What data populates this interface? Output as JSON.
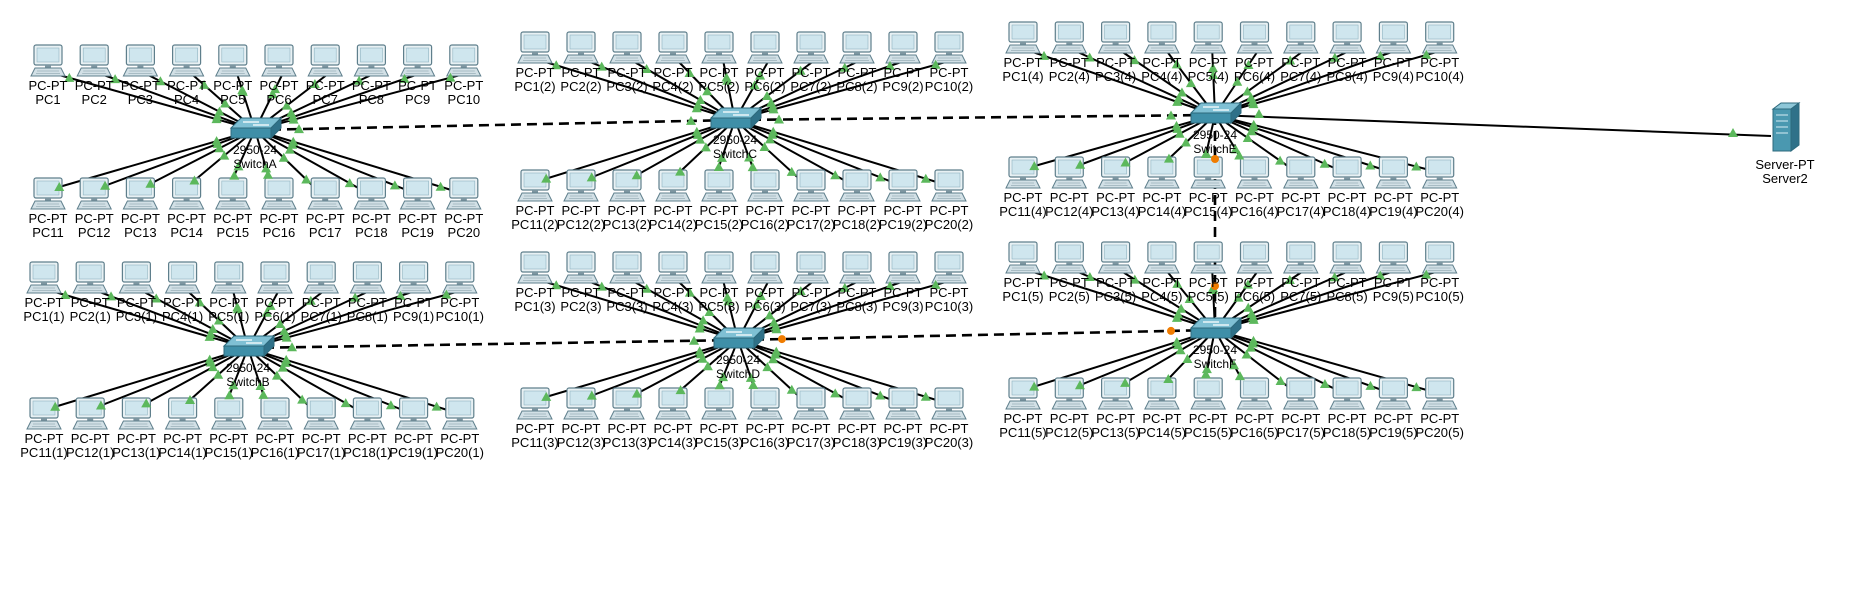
{
  "colors": {
    "background": "#ffffff",
    "cable_straight": "#000000",
    "cable_crossover": "#000000",
    "link_up": "#5cb85c",
    "link_down": "#f07c00",
    "switch_body": "#3f8fa8",
    "pc_screen": "#cfe6ee"
  },
  "pc_type": "PC-PT",
  "switch_model": "2950-24",
  "server_type": "Server-PT",
  "switches": [
    {
      "id": "A",
      "name": "SwitchA",
      "pcs_top": [
        "PC1",
        "PC2",
        "PC3",
        "PC4",
        "PC5",
        "PC6",
        "PC7",
        "PC8",
        "PC9",
        "PC10"
      ],
      "pcs_bottom": [
        "PC11",
        "PC12",
        "PC13",
        "PC14",
        "PC15",
        "PC16",
        "PC17",
        "PC18",
        "PC19",
        "PC20"
      ]
    },
    {
      "id": "B",
      "name": "SwitchB",
      "pcs_top": [
        "PC1(1)",
        "PC2(1)",
        "PC3(1)",
        "PC4(1)",
        "PC5(1)",
        "PC6(1)",
        "PC7(1)",
        "PC8(1)",
        "PC9(1)",
        "PC10(1)"
      ],
      "pcs_bottom": [
        "PC11(1)",
        "PC12(1)",
        "PC13(1)",
        "PC14(1)",
        "PC15(1)",
        "PC16(1)",
        "PC17(1)",
        "PC18(1)",
        "PC19(1)",
        "PC20(1)"
      ]
    },
    {
      "id": "C",
      "name": "SwitchC",
      "pcs_top": [
        "PC1(2)",
        "PC2(2)",
        "PC3(2)",
        "PC4(2)",
        "PC5(2)",
        "PC6(2)",
        "PC7(2)",
        "PC8(2)",
        "PC9(2)",
        "PC10(2)"
      ],
      "pcs_bottom": [
        "PC11(2)",
        "PC12(2)",
        "PC13(2)",
        "PC14(2)",
        "PC15(2)",
        "PC16(2)",
        "PC17(2)",
        "PC18(2)",
        "PC19(2)",
        "PC20(2)"
      ]
    },
    {
      "id": "D",
      "name": "SwitchD",
      "pcs_top": [
        "PC1(3)",
        "PC2(3)",
        "PC3(3)",
        "PC4(3)",
        "PC5(3)",
        "PC6(3)",
        "PC7(3)",
        "PC8(3)",
        "PC9(3)",
        "PC10(3)"
      ],
      "pcs_bottom": [
        "PC11(3)",
        "PC12(3)",
        "PC13(3)",
        "PC14(3)",
        "PC15(3)",
        "PC16(3)",
        "PC17(3)",
        "PC18(3)",
        "PC19(3)",
        "PC20(3)"
      ]
    },
    {
      "id": "E",
      "name": "SwitchE",
      "pcs_top": [
        "PC1(4)",
        "PC2(4)",
        "PC3(4)",
        "PC4(4)",
        "PC5(4)",
        "PC6(4)",
        "PC7(4)",
        "PC8(4)",
        "PC9(4)",
        "PC10(4)"
      ],
      "pcs_bottom": [
        "PC11(4)",
        "PC12(4)",
        "PC13(4)",
        "PC14(4)",
        "PC15(4)",
        "PC16(4)",
        "PC17(4)",
        "PC18(4)",
        "PC19(4)",
        "PC20(4)"
      ]
    },
    {
      "id": "F",
      "name": "SwitchF",
      "pcs_top": [
        "PC1(5)",
        "PC2(5)",
        "PC3(5)",
        "PC4(5)",
        "PC5(5)",
        "PC6(5)",
        "PC7(5)",
        "PC8(5)",
        "PC9(5)",
        "PC10(5)"
      ],
      "pcs_bottom": [
        "PC11(5)",
        "PC12(5)",
        "PC13(5)",
        "PC14(5)",
        "PC15(5)",
        "PC16(5)",
        "PC17(5)",
        "PC18(5)",
        "PC19(5)",
        "PC20(5)"
      ]
    }
  ],
  "server": {
    "name": "Server2",
    "connected_to": "E"
  },
  "trunks": [
    {
      "from": "A",
      "to": "C",
      "state": "up"
    },
    {
      "from": "C",
      "to": "E",
      "state": "up"
    },
    {
      "from": "B",
      "to": "D",
      "state": "up"
    },
    {
      "from": "D",
      "to": "F",
      "state": "down"
    },
    {
      "from": "E",
      "to": "F",
      "state": "down"
    }
  ]
}
